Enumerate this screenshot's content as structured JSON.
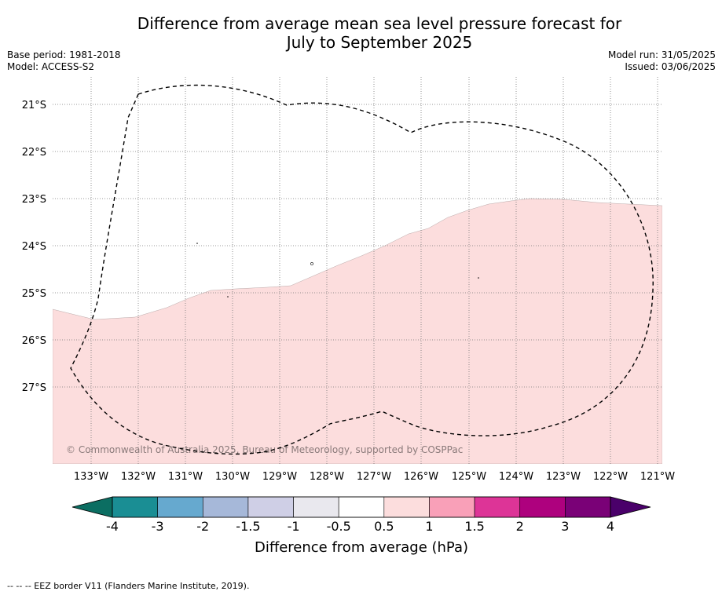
{
  "title": {
    "line1": "Difference from average mean sea level pressure forecast for",
    "line2": "July to September 2025"
  },
  "meta_left": {
    "base_period": "Base period: 1981-2018",
    "model": "Model: ACCESS-S2"
  },
  "meta_right": {
    "model_run": "Model run: 31/05/2025",
    "issued": "Issued: 03/06/2025"
  },
  "map": {
    "background_color": "#ffffff",
    "region_fill_color": "#fcdddd",
    "lon_labels": [
      "133°W",
      "132°W",
      "131°W",
      "130°W",
      "129°W",
      "128°W",
      "127°W",
      "126°W",
      "125°W",
      "124°W",
      "123°W",
      "122°W",
      "121°W"
    ],
    "lat_labels": [
      "21°S",
      "22°S",
      "23°S",
      "24°S",
      "25°S",
      "26°S",
      "27°S"
    ],
    "copyright": "© Commonwealth of Australia 2025, Bureau of Meteorology, supported by COSPPac",
    "gridlines": "dotted",
    "eez_border": "dashed"
  },
  "colorbar": {
    "label": "Difference from average (hPa)",
    "tick_labels": [
      "-4",
      "-3",
      "-2",
      "-1.5",
      "-1",
      "-0.5",
      "0.5",
      "1",
      "1.5",
      "2",
      "3",
      "4"
    ],
    "colors": [
      "#1a8e94",
      "#66a9cf",
      "#a6b8d9",
      "#cfcfe6",
      "#e9e8ee",
      "#ffffff",
      "#fcdddd",
      "#f9a0b8",
      "#dd3497",
      "#ae017e",
      "#7a0177"
    ],
    "under_color": "#0b6e62",
    "over_color": "#4a006a"
  },
  "footnote": "--  --  -- EEZ border V11 (Flanders Marine Institute, 2019)."
}
